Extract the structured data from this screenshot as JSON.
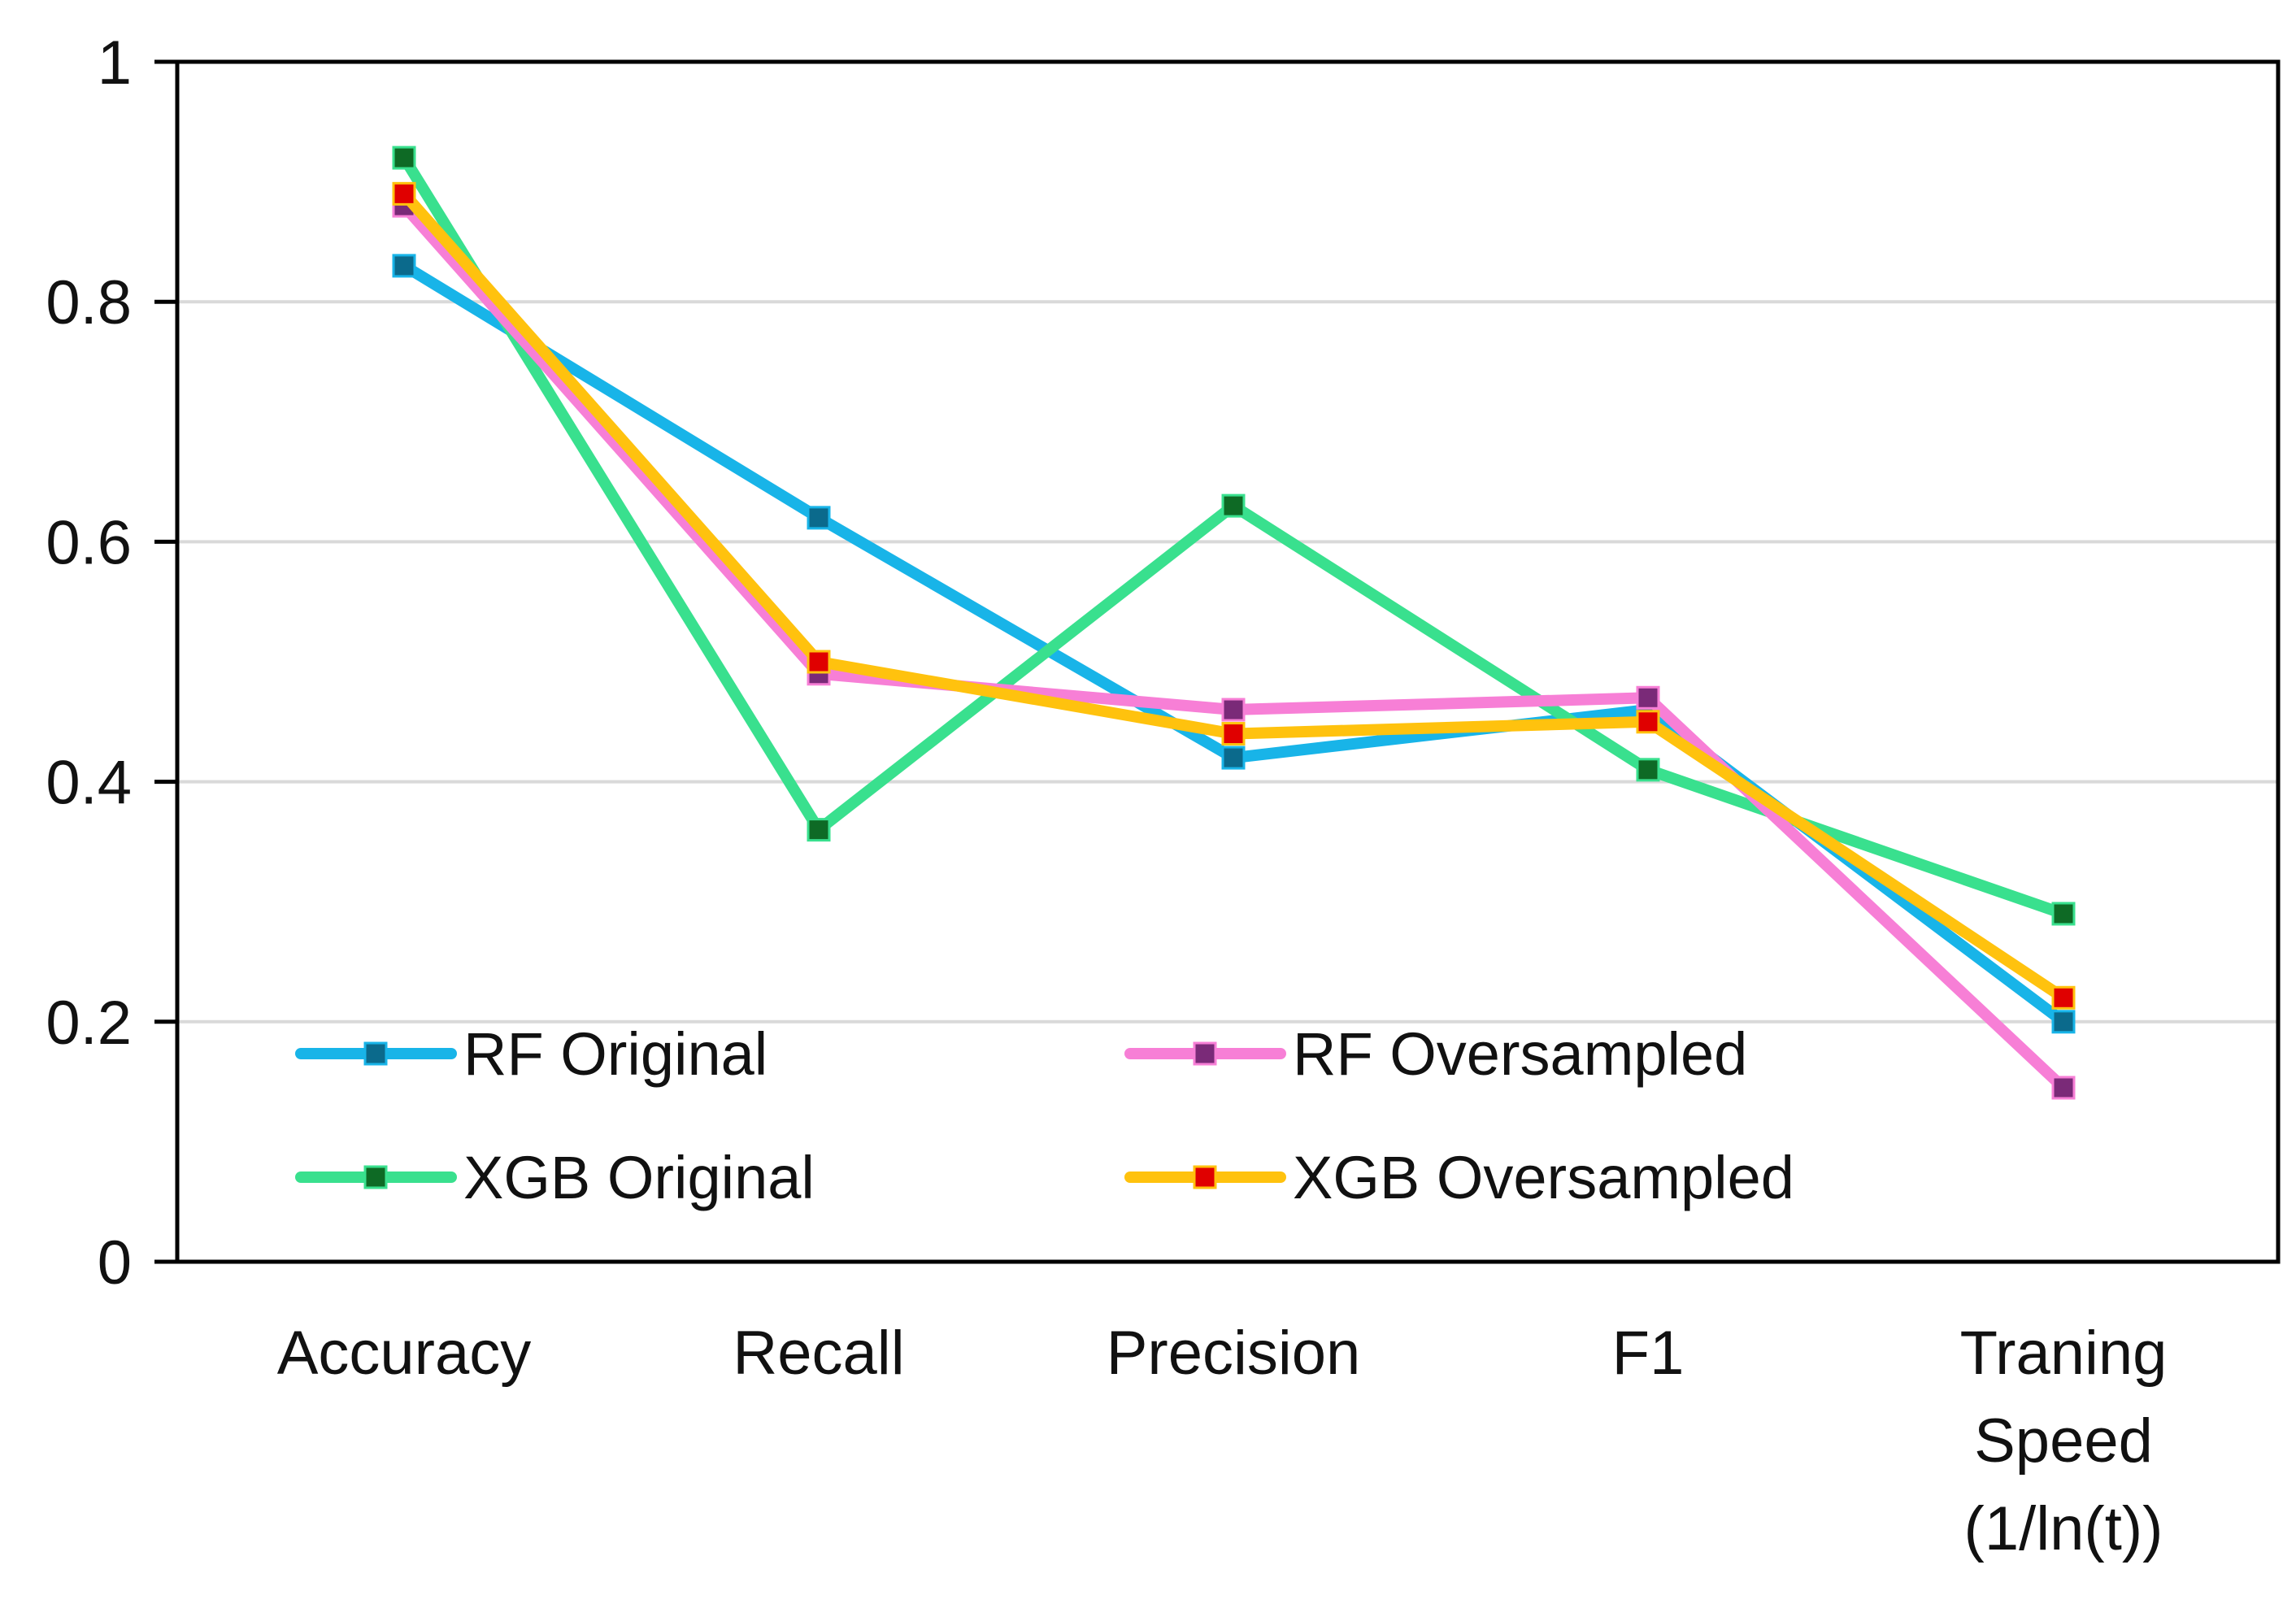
{
  "chart_data": {
    "type": "line",
    "title": "",
    "xlabel": "",
    "ylabel": "",
    "categories": [
      [
        "Accuracy"
      ],
      [
        "Recall"
      ],
      [
        "Precision"
      ],
      [
        "F1"
      ],
      [
        "Traning",
        "Speed",
        "(1/ln(t))"
      ]
    ],
    "ylim": [
      0,
      1
    ],
    "yticks": [
      0,
      0.2,
      0.4,
      0.6,
      0.8,
      1
    ],
    "ytick_labels": [
      "0",
      "0.2",
      "0.4",
      "0.6",
      "0.8",
      "1"
    ],
    "grid": true,
    "legend_position": "bottom-left inside",
    "series": [
      {
        "name": "RF Original",
        "values": [
          0.83,
          0.62,
          0.42,
          0.46,
          0.2
        ],
        "line_color": "#18B4E8",
        "marker_color": "#0B6A8C"
      },
      {
        "name": "RF Oversampled",
        "values": [
          0.88,
          0.49,
          0.46,
          0.47,
          0.145
        ],
        "line_color": "#F77FD6",
        "marker_color": "#7A2A78"
      },
      {
        "name": "XGB Original",
        "values": [
          0.92,
          0.36,
          0.63,
          0.41,
          0.29
        ],
        "line_color": "#39E08E",
        "marker_color": "#0E6A25"
      },
      {
        "name": "XGB Oversampled",
        "values": [
          0.89,
          0.5,
          0.44,
          0.45,
          0.22
        ],
        "line_color": "#FFC20E",
        "marker_color": "#E00000"
      }
    ]
  }
}
